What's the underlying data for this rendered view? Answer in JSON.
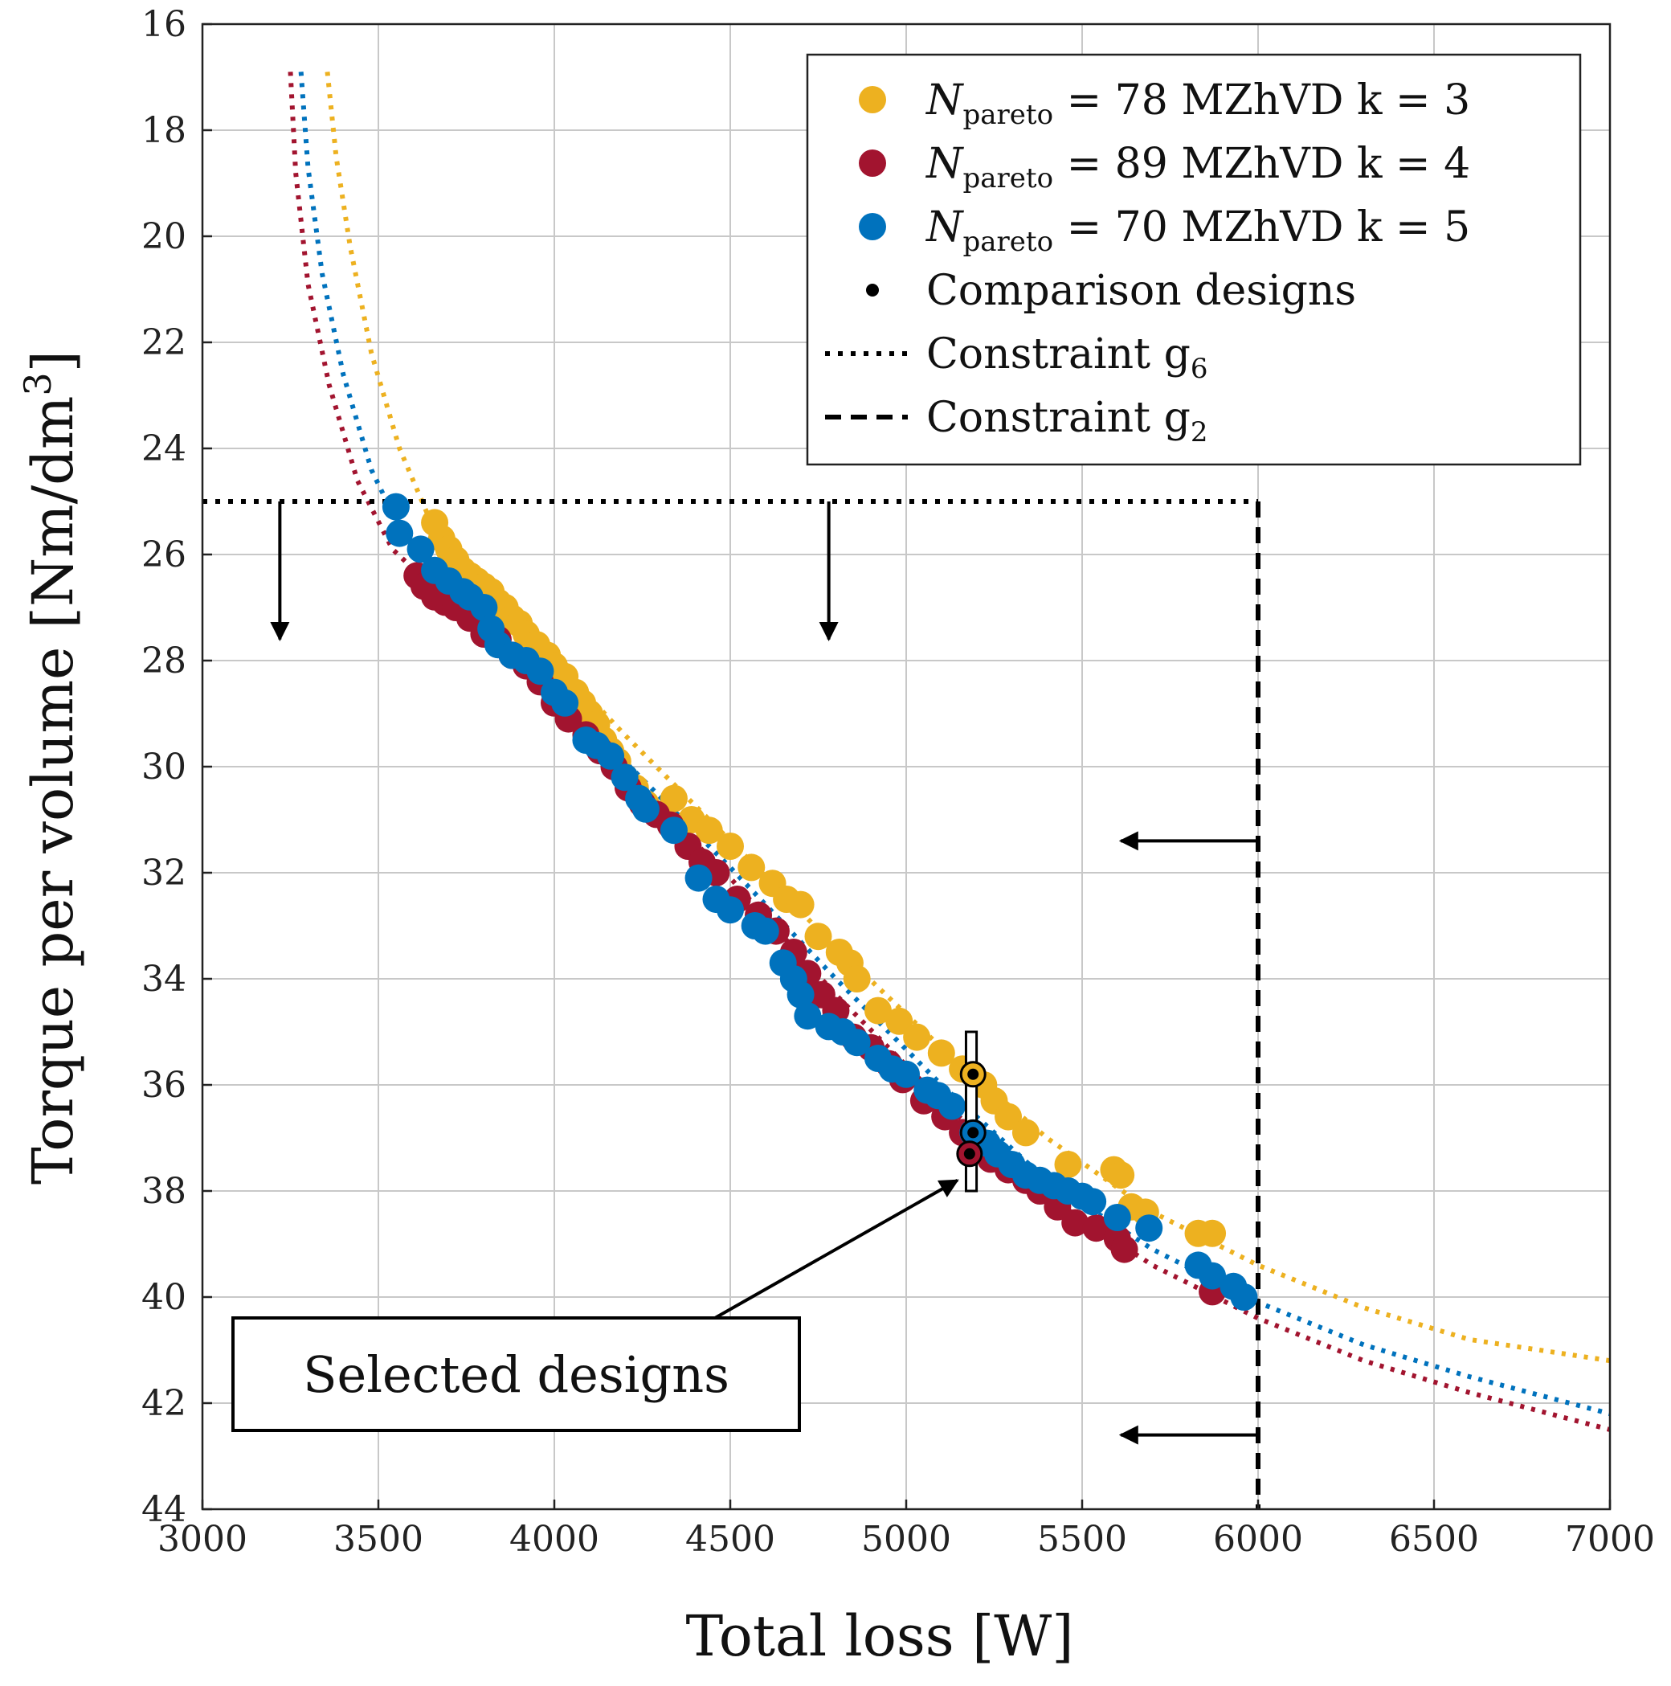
{
  "chart_data": {
    "type": "scatter",
    "title": "",
    "xlabel": "Total loss [W]",
    "ylabel": "Torque per volume [Nm/dm",
    "ylabel_sup": "3",
    "ylabel_close": "]",
    "xlim": [
      3000,
      7000
    ],
    "ylim": [
      16,
      44
    ],
    "y_inverted": true,
    "grid": true,
    "x_ticks": [
      3000,
      3500,
      4000,
      4500,
      5000,
      5500,
      6000,
      6500,
      7000
    ],
    "y_ticks": [
      16,
      18,
      20,
      22,
      24,
      26,
      28,
      30,
      32,
      34,
      36,
      38,
      40,
      42,
      44
    ],
    "legend_position": "top-right",
    "legend": [
      {
        "marker": "dot",
        "color": "#EDB120",
        "prefix": "N",
        "subscript": "pareto",
        "text": " = 78 MZhVD k = 3"
      },
      {
        "marker": "dot",
        "color": "#A2142F",
        "prefix": "N",
        "subscript": "pareto",
        "text": " = 89 MZhVD k = 4"
      },
      {
        "marker": "dot",
        "color": "#0072BD",
        "prefix": "N",
        "subscript": "pareto",
        "text": " = 70 MZhVD k = 5"
      },
      {
        "marker": "small-dot",
        "color": "#000000",
        "prefix": "",
        "subscript": "",
        "text": "Comparison designs"
      },
      {
        "marker": "dotted-line",
        "color": "#000000",
        "prefix": "",
        "subscript": "",
        "text": "Constraint g",
        "text_sub": "6"
      },
      {
        "marker": "dashed-line",
        "color": "#000000",
        "prefix": "",
        "subscript": "",
        "text": "Constraint g",
        "text_sub": "2"
      }
    ],
    "series": [
      {
        "name": "MZhVD k = 3",
        "color": "#EDB120",
        "x": [
          3660,
          3680,
          3700,
          3720,
          3740,
          3760,
          3780,
          3800,
          3820,
          3840,
          3860,
          3880,
          3900,
          3920,
          3950,
          3980,
          4000,
          4030,
          4060,
          4080,
          4100,
          4120,
          4140,
          4160,
          4180,
          4200,
          4230,
          4260,
          4300,
          4340,
          4390,
          4440,
          4500,
          4560,
          4620,
          4660,
          4700,
          4750,
          4810,
          4840,
          4860,
          4920,
          4980,
          5030,
          5100,
          5160,
          5220,
          5250,
          5290,
          5340,
          5460,
          5590,
          5610,
          5640,
          5680,
          5830,
          5870
        ],
        "y": [
          25.4,
          25.7,
          25.9,
          26.1,
          26.3,
          26.4,
          26.5,
          26.6,
          26.7,
          26.9,
          27.0,
          27.2,
          27.3,
          27.5,
          27.7,
          27.9,
          28.1,
          28.3,
          28.6,
          28.8,
          29.0,
          29.2,
          29.5,
          29.7,
          29.9,
          30.2,
          30.4,
          30.7,
          30.9,
          30.6,
          31.0,
          31.2,
          31.5,
          31.9,
          32.2,
          32.5,
          32.6,
          33.2,
          33.5,
          33.7,
          34.0,
          34.6,
          34.8,
          35.1,
          35.4,
          35.7,
          36.0,
          36.3,
          36.6,
          36.9,
          37.5,
          37.6,
          37.7,
          38.3,
          38.4,
          38.8,
          38.8
        ]
      },
      {
        "name": "MZhVD k = 4",
        "color": "#A2142F",
        "x": [
          3610,
          3630,
          3660,
          3690,
          3720,
          3760,
          3800,
          3840,
          3880,
          3920,
          3960,
          4000,
          4040,
          4090,
          4130,
          4170,
          4210,
          4250,
          4290,
          4330,
          4380,
          4420,
          4460,
          4520,
          4580,
          4630,
          4680,
          4720,
          4760,
          4800,
          4850,
          4900,
          4950,
          4990,
          5050,
          5110,
          5160,
          5200,
          5240,
          5290,
          5340,
          5380,
          5430,
          5480,
          5540,
          5600,
          5620,
          5870
        ],
        "y": [
          26.4,
          26.6,
          26.8,
          26.9,
          27.0,
          27.2,
          27.5,
          27.6,
          27.9,
          28.1,
          28.4,
          28.8,
          29.1,
          29.4,
          29.7,
          30.0,
          30.4,
          30.7,
          30.9,
          31.1,
          31.5,
          31.8,
          32.0,
          32.5,
          32.8,
          33.1,
          33.5,
          33.9,
          34.3,
          34.6,
          35.1,
          35.3,
          35.6,
          35.9,
          36.3,
          36.6,
          36.9,
          37.2,
          37.4,
          37.6,
          37.8,
          38.0,
          38.3,
          38.6,
          38.7,
          38.9,
          39.1,
          39.9
        ]
      },
      {
        "name": "MZhVD k = 5",
        "color": "#0072BD",
        "x": [
          3550,
          3560,
          3620,
          3660,
          3700,
          3740,
          3760,
          3800,
          3820,
          3840,
          3880,
          3920,
          3960,
          4000,
          4030,
          4090,
          4120,
          4160,
          4200,
          4240,
          4260,
          4340,
          4410,
          4460,
          4500,
          4570,
          4600,
          4650,
          4680,
          4700,
          4720,
          4780,
          4820,
          4860,
          4920,
          4960,
          5000,
          5060,
          5090,
          5130,
          5190,
          5230,
          5260,
          5300,
          5340,
          5380,
          5420,
          5460,
          5500,
          5530,
          5600,
          5690,
          5830,
          5870,
          5930,
          5960
        ],
        "y": [
          25.1,
          25.6,
          25.9,
          26.3,
          26.5,
          26.7,
          26.8,
          27.0,
          27.4,
          27.7,
          27.9,
          28.0,
          28.2,
          28.6,
          28.8,
          29.5,
          29.6,
          29.8,
          30.2,
          30.6,
          30.8,
          31.2,
          32.1,
          32.5,
          32.7,
          33.0,
          33.1,
          33.7,
          34.0,
          34.3,
          34.7,
          34.9,
          35.0,
          35.2,
          35.5,
          35.7,
          35.8,
          36.1,
          36.2,
          36.4,
          36.9,
          37.1,
          37.3,
          37.5,
          37.7,
          37.8,
          37.9,
          38.0,
          38.1,
          38.2,
          38.5,
          38.7,
          39.4,
          39.6,
          39.8,
          40.0
        ]
      }
    ],
    "pareto_curves": [
      {
        "color": "#EDB120",
        "x": [
          3355,
          3380,
          3420,
          3480,
          3560,
          3650,
          3800,
          4000,
          4200,
          4500,
          4800,
          5100,
          5400,
          5700,
          6000,
          6300,
          6600,
          7000
        ],
        "y": [
          16.9,
          18.5,
          20.2,
          22.2,
          24.0,
          25.4,
          26.6,
          28.0,
          29.4,
          31.4,
          33.4,
          35.3,
          37.0,
          38.4,
          39.4,
          40.2,
          40.8,
          41.2
        ]
      },
      {
        "color": "#0072BD",
        "x": [
          3280,
          3300,
          3340,
          3400,
          3480,
          3560,
          3700,
          3900,
          4200,
          4500,
          4800,
          5100,
          5400,
          5700,
          6000,
          6300,
          6600,
          7000
        ],
        "y": [
          16.9,
          18.7,
          20.7,
          22.6,
          24.4,
          25.5,
          26.6,
          27.9,
          29.9,
          31.9,
          34.0,
          36.0,
          37.8,
          39.1,
          40.1,
          40.9,
          41.5,
          42.2
        ]
      },
      {
        "color": "#A2142F",
        "x": [
          3250,
          3265,
          3300,
          3360,
          3440,
          3540,
          3700,
          3900,
          4200,
          4500,
          4800,
          5100,
          5400,
          5700,
          6000,
          6300,
          6600,
          7000
        ],
        "y": [
          16.9,
          18.8,
          20.9,
          22.8,
          24.6,
          25.9,
          26.9,
          28.1,
          30.1,
          32.1,
          34.3,
          36.3,
          38.1,
          39.4,
          40.4,
          41.2,
          41.8,
          42.5
        ]
      }
    ],
    "comparison_designs": [
      {
        "x": 5190,
        "y": 35.8,
        "ring": "#EDB120"
      },
      {
        "x": 5190,
        "y": 36.9,
        "ring": "#0072BD"
      },
      {
        "x": 5180,
        "y": 37.3,
        "ring": "#A2142F"
      }
    ],
    "constraint_g6": {
      "y": 25,
      "x_from": 3000,
      "x_to": 6000
    },
    "constraint_g2": {
      "x": 6000,
      "y_from": 25,
      "y_to": 44
    },
    "arrows_down": [
      {
        "x": 3220,
        "y_from": 25,
        "y_to": 27.6
      },
      {
        "x": 4780,
        "y_from": 25,
        "y_to": 27.6
      }
    ],
    "arrows_left": [
      {
        "y": 31.4,
        "x_from": 6000,
        "x_to": 5610
      },
      {
        "y": 42.6,
        "x_from": 6000,
        "x_to": 5610
      }
    ],
    "selection_box": {
      "x_from": 5170,
      "x_to": 5200,
      "y_from": 35,
      "y_to": 38
    },
    "annotation": {
      "text": "Selected designs",
      "arrow_to_x": 5150,
      "arrow_to_y": 37.8
    }
  }
}
